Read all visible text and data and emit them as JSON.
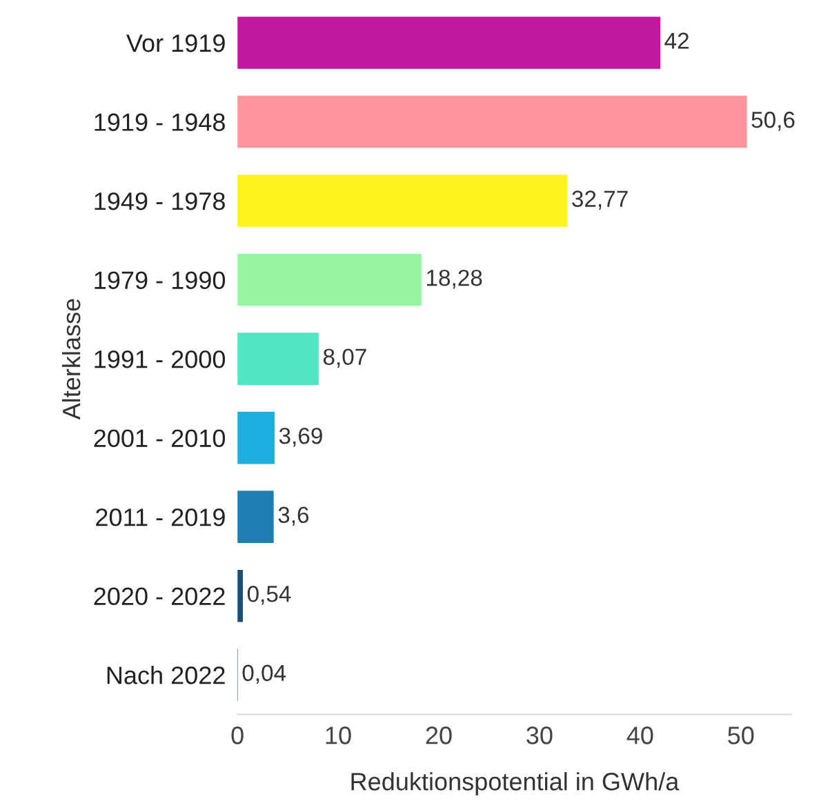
{
  "chart_data": {
    "type": "bar",
    "orientation": "horizontal",
    "xlabel": "Reduktionspotential in GWh/a",
    "ylabel": "Alterklasse",
    "categories": [
      "Vor 1919",
      "1919 - 1948",
      "1949 - 1978",
      "1979 - 1990",
      "1991 - 2000",
      "2001 - 2010",
      "2011 - 2019",
      "2020 - 2022",
      "Nach 2022"
    ],
    "values": [
      42,
      50.6,
      32.77,
      18.28,
      8.07,
      3.69,
      3.6,
      0.54,
      0.04
    ],
    "value_labels": [
      "42",
      "50,6",
      "32,77",
      "18,28",
      "8,07",
      "3,69",
      "3,6",
      "0,54",
      "0,04"
    ],
    "colors": [
      "#c0199f",
      "#ff949c",
      "#fff21f",
      "#97f5a0",
      "#52e5c2",
      "#1eaee0",
      "#1f7fb4",
      "#1a4f7a",
      "#1a3b5c"
    ],
    "xlim": [
      0,
      55
    ],
    "xticks": [
      0,
      10,
      20,
      30,
      40,
      50
    ],
    "grid": false,
    "legend": false
  }
}
